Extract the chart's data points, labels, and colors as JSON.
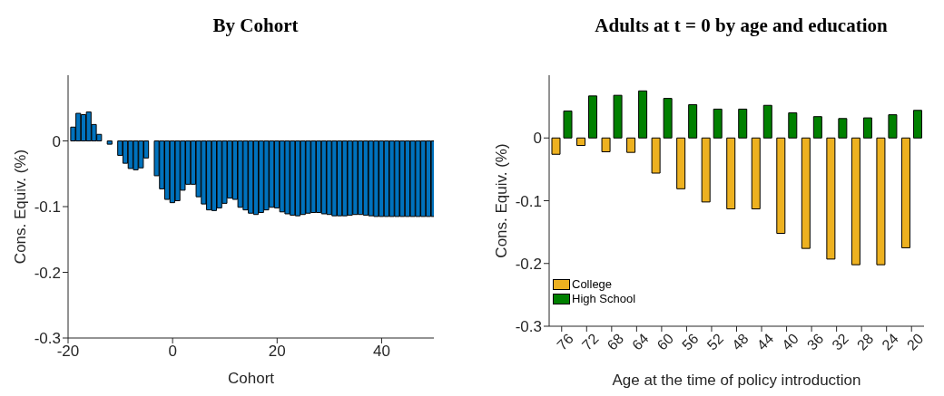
{
  "chart_data": [
    {
      "type": "bar",
      "title": "By Cohort",
      "xlabel": "Cohort",
      "ylabel": "Cons. Equiv. (%)",
      "x": [
        -19,
        -18,
        -17,
        -16,
        -15,
        -14,
        -13,
        -12,
        -11,
        -10,
        -9,
        -8,
        -7,
        -6,
        -5,
        -4,
        -3,
        -2,
        -1,
        0,
        1,
        2,
        3,
        4,
        5,
        6,
        7,
        8,
        9,
        10,
        11,
        12,
        13,
        14,
        15,
        16,
        17,
        18,
        19,
        20,
        21,
        22,
        23,
        24,
        25,
        26,
        27,
        28,
        29,
        30,
        31,
        32,
        33,
        34,
        35,
        36,
        37,
        38,
        39,
        40,
        41,
        42,
        43,
        44,
        45,
        46,
        47,
        48,
        49,
        50
      ],
      "values": [
        0.021,
        0.042,
        0.04,
        0.044,
        0.025,
        0.01,
        0,
        -0.005,
        0,
        -0.022,
        -0.034,
        -0.042,
        -0.044,
        -0.041,
        -0.026,
        0,
        -0.053,
        -0.073,
        -0.089,
        -0.094,
        -0.091,
        -0.075,
        -0.066,
        -0.066,
        -0.085,
        -0.096,
        -0.105,
        -0.106,
        -0.102,
        -0.095,
        -0.087,
        -0.089,
        -0.101,
        -0.105,
        -0.11,
        -0.112,
        -0.109,
        -0.105,
        -0.101,
        -0.102,
        -0.108,
        -0.111,
        -0.113,
        -0.114,
        -0.112,
        -0.11,
        -0.109,
        -0.109,
        -0.111,
        -0.112,
        -0.114,
        -0.114,
        -0.114,
        -0.113,
        -0.112,
        -0.112,
        -0.113,
        -0.114,
        -0.115,
        -0.115,
        -0.115,
        -0.115,
        -0.115,
        -0.115,
        -0.115,
        -0.115,
        -0.115,
        -0.115,
        -0.115,
        -0.115
      ],
      "color": "#0072bd",
      "xlim": [
        -20,
        50
      ],
      "xticks": [
        -20,
        0,
        20,
        40
      ],
      "ylim": [
        -0.3,
        0.1
      ],
      "yticks": [
        -0.3,
        -0.2,
        -0.1,
        0
      ],
      "grid": false,
      "legend": false
    },
    {
      "type": "bar",
      "title": "Adults at t = 0 by age and education",
      "xlabel": "Age at the time of policy introduction",
      "ylabel": "Cons. Equiv. (%)",
      "categories": [
        "76",
        "72",
        "68",
        "64",
        "60",
        "56",
        "52",
        "48",
        "44",
        "40",
        "36",
        "32",
        "28",
        "24",
        "20"
      ],
      "series": [
        {
          "name": "College",
          "color": "#edb120",
          "values": [
            -0.026,
            -0.012,
            -0.022,
            -0.023,
            -0.056,
            -0.081,
            -0.102,
            -0.113,
            -0.113,
            -0.152,
            -0.176,
            -0.193,
            -0.202,
            -0.202,
            -0.175
          ]
        },
        {
          "name": "High School",
          "color": "#008000",
          "values": [
            0.043,
            0.067,
            0.068,
            0.075,
            0.063,
            0.053,
            0.046,
            0.046,
            0.052,
            0.04,
            0.034,
            0.031,
            0.032,
            0.037,
            0.044
          ]
        }
      ],
      "ylim": [
        -0.3,
        0.1
      ],
      "yticks": [
        -0.3,
        -0.2,
        -0.1,
        0
      ],
      "grid": false,
      "legend": "bottom left"
    }
  ]
}
